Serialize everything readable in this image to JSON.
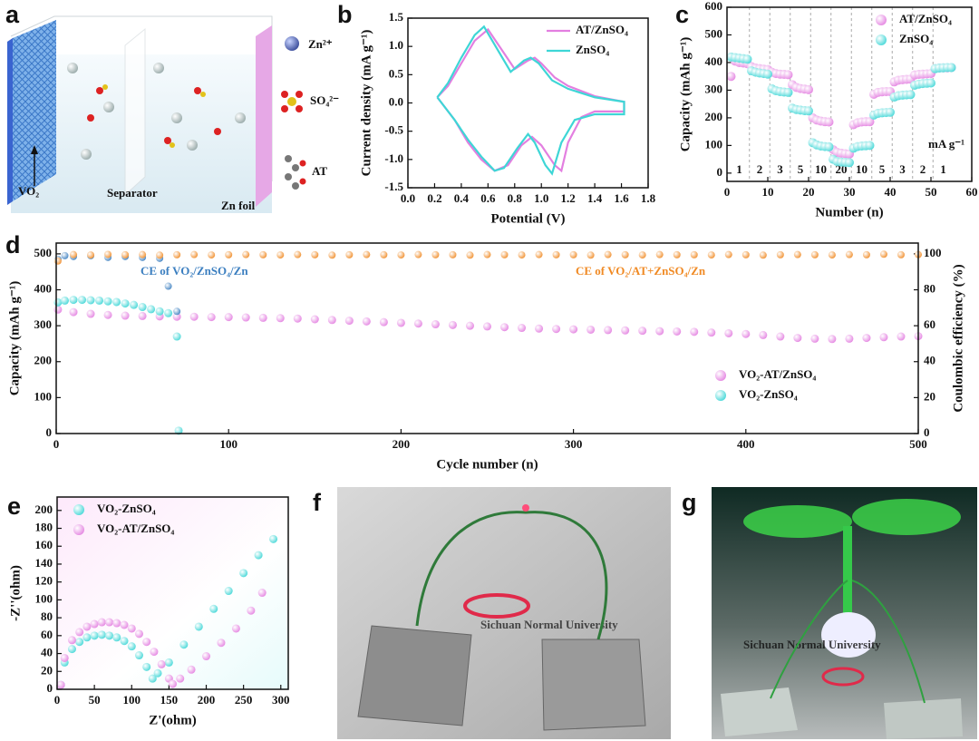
{
  "schematic": {
    "panel_label": "a",
    "legend": [
      "Zn²⁺",
      "SO₄²⁻",
      "AT"
    ],
    "labels": {
      "vo2": "VO₂",
      "separator": "Separator",
      "zn_foil": "Zn foil"
    }
  },
  "chart_data": [
    {
      "type": "line",
      "panel_label": "b",
      "x_label": "Potential (V)",
      "y_label": "Current density (mA g⁻¹)",
      "xlim": [
        0,
        1.8
      ],
      "xticks": [
        {
          "value": 0,
          "label": "0.0"
        },
        0.2,
        0.4,
        0.6,
        0.8,
        {
          "value": 1,
          "label": "1.0"
        },
        1.2,
        1.4,
        1.6,
        1.8
      ],
      "ylim": [
        -1.5,
        1.5
      ],
      "yticks": [
        -1.5,
        {
          "value": -1,
          "label": "-1.0"
        },
        -0.5,
        {
          "value": 0,
          "label": "0.0"
        },
        0.5,
        {
          "value": 1,
          "label": "1.0"
        },
        1.5
      ],
      "legend": "upper right",
      "series": [
        {
          "name": "AT/ZnSO₄",
          "color": "#e37fe0",
          "x": [
            0.22,
            0.3,
            0.4,
            0.5,
            0.6,
            0.7,
            0.8,
            0.9,
            0.95,
            1.0,
            1.1,
            1.2,
            1.4,
            1.62,
            1.62,
            1.4,
            1.3,
            1.2,
            1.15,
            1.1,
            1.0,
            0.93,
            0.85,
            0.75,
            0.65,
            0.55,
            0.45,
            0.35,
            0.22
          ],
          "values": [
            0.1,
            0.3,
            0.7,
            1.1,
            1.3,
            0.95,
            0.6,
            0.75,
            0.8,
            0.7,
            0.45,
            0.3,
            0.12,
            0.02,
            -0.15,
            -0.15,
            -0.25,
            -0.7,
            -1.2,
            -1.1,
            -0.75,
            -0.6,
            -0.75,
            -1.1,
            -1.2,
            -1.0,
            -0.7,
            -0.3,
            0.1
          ]
        },
        {
          "name": "ZnSO₄",
          "color": "#3ed6d6",
          "x": [
            0.22,
            0.3,
            0.4,
            0.5,
            0.57,
            0.67,
            0.77,
            0.87,
            0.92,
            0.98,
            1.08,
            1.2,
            1.4,
            1.62,
            1.62,
            1.4,
            1.25,
            1.15,
            1.08,
            1.03,
            0.95,
            0.9,
            0.82,
            0.72,
            0.65,
            0.55,
            0.45,
            0.35,
            0.22
          ],
          "values": [
            0.1,
            0.35,
            0.8,
            1.2,
            1.35,
            0.95,
            0.55,
            0.75,
            0.8,
            0.7,
            0.4,
            0.25,
            0.1,
            0.02,
            -0.2,
            -0.2,
            -0.3,
            -0.7,
            -1.25,
            -1.1,
            -0.7,
            -0.55,
            -0.8,
            -1.15,
            -1.2,
            -0.95,
            -0.65,
            -0.3,
            0.1
          ]
        }
      ]
    },
    {
      "type": "scatter",
      "panel_label": "c",
      "x_label": "Number (n)",
      "y_label": "Capacity (mAh g⁻¹)",
      "xlim": [
        0,
        60
      ],
      "xticks": [
        0,
        10,
        20,
        30,
        40,
        50,
        60
      ],
      "ylim": [
        -30,
        600
      ],
      "yticks": [
        0,
        100,
        200,
        300,
        400,
        500,
        600
      ],
      "legend": "upper right",
      "rate_labels": [
        1,
        2,
        3,
        5,
        10,
        20,
        10,
        5,
        3,
        2,
        1
      ],
      "rate_unit": "mA g⁻¹",
      "series": [
        {
          "name": "AT/ZnSO₄",
          "color": "#e37fe0",
          "x": [
            1,
            2,
            3,
            4,
            5,
            6,
            7,
            8,
            9,
            10,
            11,
            12,
            13,
            14,
            15,
            16,
            17,
            18,
            19,
            20,
            21,
            22,
            23,
            24,
            25,
            26,
            27,
            28,
            29,
            30,
            31,
            32,
            33,
            34,
            35,
            36,
            37,
            38,
            39,
            40,
            41,
            42,
            43,
            44,
            45,
            46,
            47,
            48,
            49,
            50,
            51,
            52,
            53,
            54,
            55
          ],
          "values": [
            350,
            405,
            400,
            398,
            396,
            385,
            380,
            378,
            376,
            375,
            365,
            360,
            358,
            357,
            356,
            320,
            310,
            306,
            304,
            302,
            200,
            192,
            188,
            186,
            185,
            85,
            75,
            72,
            70,
            69,
            175,
            182,
            185,
            186,
            186,
            285,
            292,
            294,
            295,
            295,
            330,
            336,
            338,
            339,
            340,
            355,
            357,
            358,
            359,
            360,
            378,
            380,
            381,
            381,
            382
          ]
        },
        {
          "name": "ZnSO₄",
          "color": "#3ed6d6",
          "x": [
            1,
            2,
            3,
            4,
            5,
            6,
            7,
            8,
            9,
            10,
            11,
            12,
            13,
            14,
            15,
            16,
            17,
            18,
            19,
            20,
            21,
            22,
            23,
            24,
            25,
            26,
            27,
            28,
            29,
            30,
            31,
            32,
            33,
            34,
            35,
            36,
            37,
            38,
            39,
            40,
            41,
            42,
            43,
            44,
            45,
            46,
            47,
            48,
            49,
            50,
            51,
            52,
            53,
            54,
            55
          ],
          "values": [
            420,
            418,
            416,
            414,
            412,
            370,
            365,
            362,
            360,
            358,
            305,
            298,
            295,
            293,
            292,
            235,
            230,
            228,
            226,
            225,
            110,
            102,
            98,
            96,
            95,
            50,
            42,
            40,
            39,
            38,
            90,
            96,
            98,
            99,
            100,
            210,
            216,
            218,
            219,
            220,
            275,
            280,
            282,
            283,
            284,
            318,
            322,
            324,
            325,
            326,
            378,
            380,
            381,
            382,
            382
          ]
        }
      ]
    },
    {
      "type": "scatter",
      "panel_label": "d",
      "x_label": "Cycle number (n)",
      "y_label": "Capacity (mAh g⁻¹)",
      "y2_label": "Coulombic efficiency (%)",
      "xlim": [
        0,
        500
      ],
      "xticks": [
        0,
        100,
        200,
        300,
        400,
        500
      ],
      "ylim": [
        0,
        530
      ],
      "yticks": [
        0,
        100,
        200,
        300,
        400,
        500
      ],
      "y2lim": [
        0,
        106
      ],
      "y2ticks": [
        0,
        20,
        40,
        60,
        80,
        100
      ],
      "legend": "lower right",
      "series": [
        {
          "name": "VO₂-AT/ZnSO₄",
          "color": "#e37fe0",
          "x": [
            1,
            10,
            20,
            30,
            40,
            50,
            60,
            70,
            80,
            90,
            100,
            110,
            120,
            130,
            140,
            150,
            160,
            170,
            180,
            190,
            200,
            210,
            220,
            230,
            240,
            250,
            260,
            270,
            280,
            290,
            300,
            310,
            320,
            330,
            340,
            350,
            360,
            370,
            380,
            390,
            400,
            410,
            420,
            430,
            440,
            450,
            460,
            470,
            480,
            490,
            500
          ],
          "values": [
            345,
            338,
            333,
            330,
            328,
            327,
            326,
            325,
            325,
            324,
            324,
            323,
            322,
            321,
            320,
            318,
            316,
            314,
            312,
            310,
            308,
            306,
            304,
            302,
            300,
            298,
            296,
            294,
            292,
            291,
            290,
            289,
            288,
            287,
            286,
            285,
            284,
            283,
            281,
            279,
            277,
            274,
            270,
            266,
            264,
            263,
            264,
            266,
            268,
            270,
            271
          ]
        },
        {
          "name": "VO₂-ZnSO₄",
          "color": "#3ed6d6",
          "x": [
            1,
            5,
            10,
            15,
            20,
            25,
            30,
            35,
            40,
            45,
            50,
            55,
            60,
            65,
            70,
            71
          ],
          "values": [
            365,
            370,
            372,
            372,
            371,
            370,
            368,
            366,
            362,
            358,
            352,
            346,
            340,
            335,
            270,
            8
          ]
        },
        {
          "name": "CE of VO₂/ZnSO₄/Zn",
          "color": "#3c7fc0",
          "axis": "y2",
          "x": [
            1,
            5,
            10,
            20,
            30,
            40,
            50,
            60,
            65,
            70
          ],
          "values": [
            97,
            99,
            98.5,
            99,
            98,
            98.5,
            98,
            97.5,
            82,
            68
          ]
        },
        {
          "name": "CE of VO₂/AT+ZnSO₄/Zn",
          "color": "#f08a24",
          "axis": "y2",
          "x": [
            1,
            10,
            20,
            30,
            40,
            50,
            60,
            70,
            80,
            90,
            100,
            110,
            120,
            130,
            140,
            150,
            160,
            170,
            180,
            190,
            200,
            210,
            220,
            230,
            240,
            250,
            260,
            270,
            280,
            290,
            300,
            310,
            320,
            330,
            340,
            350,
            360,
            370,
            380,
            390,
            400,
            410,
            420,
            430,
            440,
            450,
            460,
            470,
            480,
            490,
            500
          ],
          "values": [
            96,
            99.6,
            99.4,
            99.7,
            99.5,
            99.6,
            99.3,
            99.5,
            99.6,
            99.4,
            99.5,
            99.6,
            99.5,
            99.4,
            99.6,
            99.5,
            99.3,
            99.5,
            99.6,
            99.5,
            99.4,
            99.6,
            99.5,
            99.5,
            99.3,
            99.6,
            99.5,
            99.4,
            99.6,
            99.5,
            99.5,
            99.3,
            99.6,
            99.5,
            99.4,
            99.6,
            99.5,
            99.5,
            99.4,
            99.6,
            99.5,
            99.3,
            99.5,
            99.6,
            99.5,
            99.4,
            99.6,
            99.5,
            99.8,
            99.5,
            99.6
          ]
        }
      ]
    },
    {
      "type": "scatter",
      "panel_label": "e",
      "x_label": "Z'(ohm)",
      "y_label": "-Z''(ohm)",
      "xlim": [
        0,
        310
      ],
      "xticks": [
        0,
        50,
        100,
        150,
        200,
        250,
        300
      ],
      "ylim": [
        0,
        215
      ],
      "yticks": [
        0,
        20,
        40,
        60,
        80,
        100,
        120,
        140,
        160,
        180,
        200
      ],
      "legend": "upper left",
      "series": [
        {
          "name": "VO₂-ZnSO₄",
          "color": "#3ed6d6",
          "x": [
            5,
            10,
            20,
            30,
            40,
            50,
            60,
            70,
            80,
            90,
            100,
            110,
            120,
            128,
            135,
            150,
            170,
            190,
            210,
            230,
            250,
            270,
            290
          ],
          "values": [
            5,
            30,
            45,
            53,
            58,
            60,
            61,
            60,
            58,
            54,
            48,
            38,
            25,
            12,
            18,
            30,
            50,
            70,
            90,
            110,
            130,
            150,
            168
          ]
        },
        {
          "name": "VO₂-AT/ZnSO₄",
          "color": "#e37fe0",
          "x": [
            5,
            10,
            20,
            30,
            40,
            50,
            60,
            70,
            80,
            90,
            100,
            110,
            120,
            130,
            140,
            150,
            155,
            165,
            180,
            200,
            220,
            240,
            260,
            275
          ],
          "values": [
            5,
            35,
            55,
            64,
            70,
            73,
            75,
            75,
            74,
            72,
            68,
            62,
            53,
            42,
            28,
            12,
            6,
            12,
            22,
            37,
            52,
            68,
            88,
            108
          ]
        }
      ]
    }
  ],
  "photos": [
    {
      "panel_label": "f",
      "text": "Sichuan Normal University"
    },
    {
      "panel_label": "g",
      "text": "Sichuan Normal University"
    }
  ]
}
